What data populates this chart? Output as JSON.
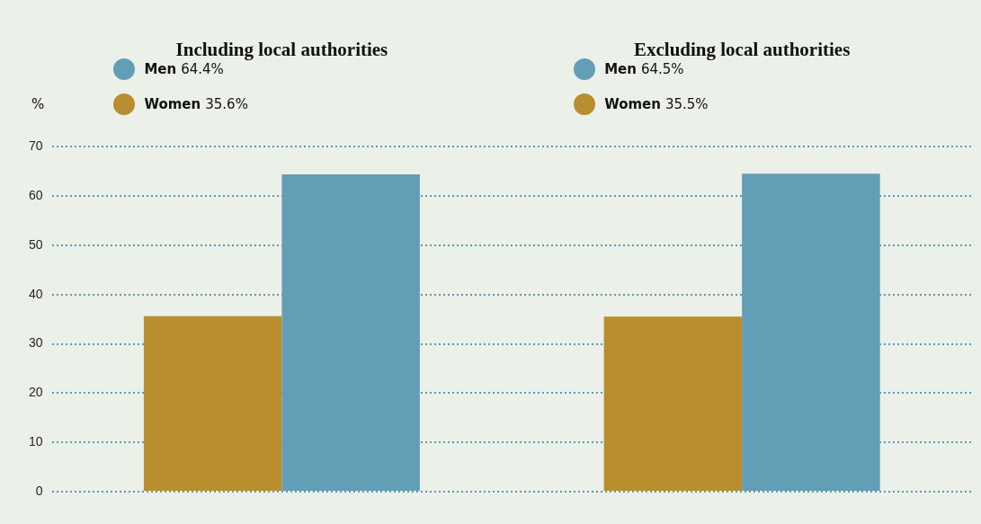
{
  "chart_data": {
    "type": "bar",
    "ylabel": "%",
    "categories": [
      "Including local authorities",
      "Excluding local authorities"
    ],
    "series": [
      {
        "name": "Women",
        "color": "#b88e2f",
        "values": [
          35.6,
          35.5
        ]
      },
      {
        "name": "Men",
        "color": "#639eb7",
        "values": [
          64.4,
          64.5
        ]
      }
    ],
    "annotations": [
      "64.4%",
      "35.6%",
      "64.5%",
      "35.5%"
    ],
    "ylim": [
      0,
      70
    ],
    "yticks": [
      0,
      10,
      20,
      30,
      40,
      50,
      60,
      70
    ],
    "grid": "y",
    "legend": "top left"
  }
}
